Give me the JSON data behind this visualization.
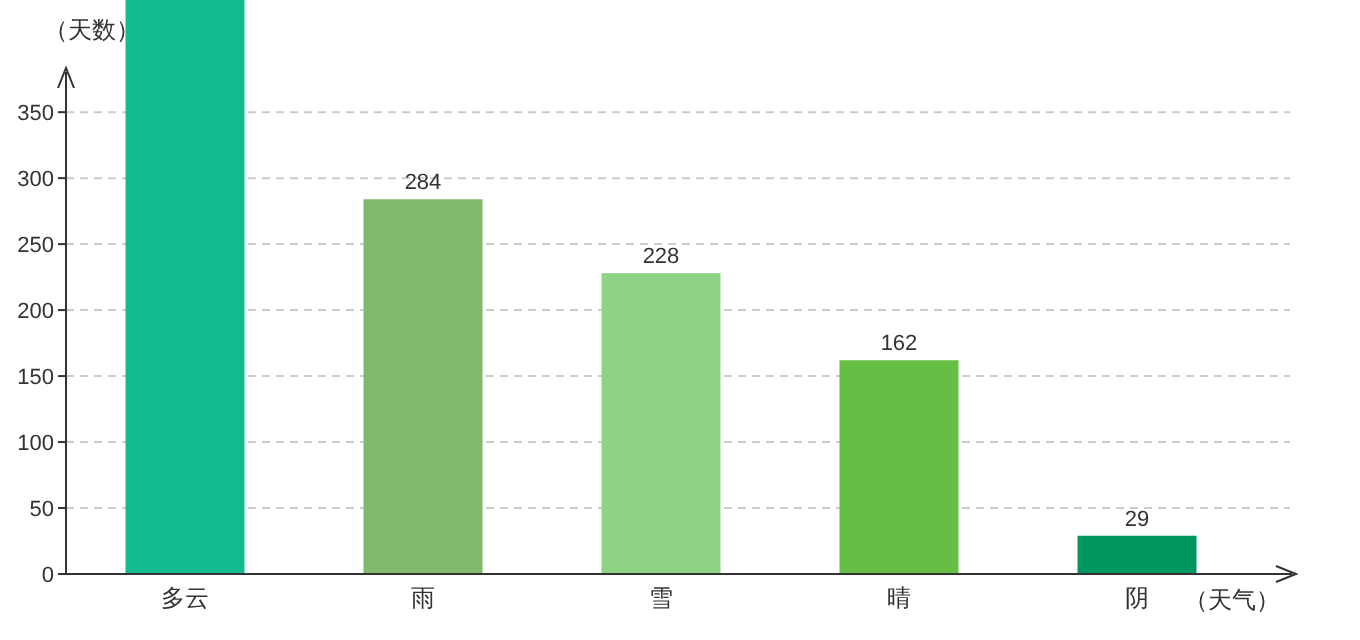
{
  "chart_data": {
    "type": "bar",
    "ylabel": "（天数）",
    "xlabel": "（天气）",
    "categories": [
      "多云",
      "雨",
      "雪",
      "晴",
      "阴"
    ],
    "values": [
      435,
      284,
      228,
      162,
      29
    ],
    "value_labels": [
      null,
      "284",
      "228",
      "162",
      "29"
    ],
    "colors": [
      "#13bb8f",
      "#7fba6a",
      "#8fd486",
      "#66bf44",
      "#009660"
    ],
    "ylim": [
      0,
      435
    ],
    "yticks": [
      0,
      50,
      100,
      150,
      200,
      250,
      300,
      350
    ],
    "grid": "y"
  }
}
